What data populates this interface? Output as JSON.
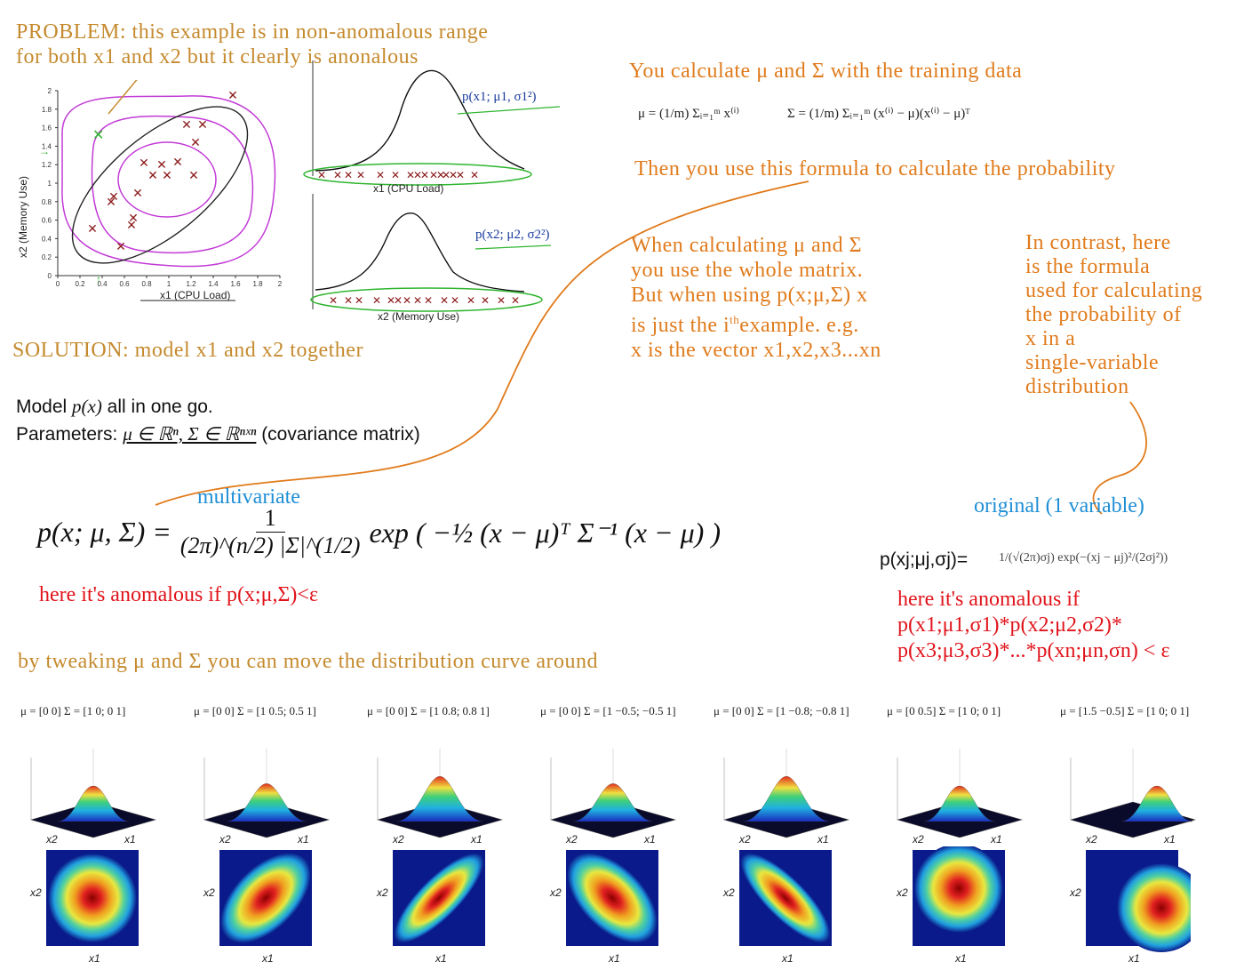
{
  "problem": {
    "line1": "PROBLEM: this example is in non-anomalous range",
    "line2": "for both x1 and x2 but it clearly is anonalous"
  },
  "plots": {
    "scatter_ylabel": "x2 (Memory Use)",
    "scatter_xlabel": "x1 (CPU Load)",
    "scatter_yticks": [
      "2",
      "1.8",
      "1.6",
      "1.4",
      "1.2",
      "1",
      "0.8",
      "0.6",
      "0.4",
      "0.2",
      "0"
    ],
    "scatter_xticks": [
      "0",
      "0.2",
      "0.4",
      "0.6",
      "0.8",
      "1",
      "1.2",
      "1.4",
      "1.6",
      "1.8",
      "2"
    ],
    "curve1_note": "p(x1; μ1, σ1²)",
    "curve1_xlabel": "x1 (CPU Load)",
    "curve2_note": "p(x2; μ2, σ2²)",
    "curve2_xlabel": "x2 (Memory Use)"
  },
  "solution": "SOLUTION: model x1 and x2 together",
  "model": {
    "line1_a": "Model ",
    "line1_math": "p(x)",
    "line1_b": " all in one go.",
    "line2_a": "Parameters: ",
    "line2_math": "μ ∈ ℝⁿ, Σ ∈ ℝⁿˣⁿ",
    "line2_b": " (covariance matrix)"
  },
  "calc": {
    "title": "You calculate μ and Σ with the training data",
    "mu_formula": "μ = (1/m) Σᵢ₌₁ᵐ x⁽ⁱ⁾",
    "sigma_formula": "Σ = (1/m) Σᵢ₌₁ᵐ (x⁽ⁱ⁾ − μ)(x⁽ⁱ⁾ − μ)ᵀ",
    "then": "Then you use this formula to calculate the probability"
  },
  "whole_matrix": {
    "l1": "When calculating μ and Σ",
    "l2": "you use the whole matrix.",
    "l3": "But when using p(x;μ,Σ) x",
    "l4a": "is just the i",
    "l4sup": "th",
    "l4b": "example. e.g.",
    "l5": "x is the vector x1,x2,x3...xn"
  },
  "contrast": {
    "l1": "In contrast, here",
    "l2": "is the formula",
    "l3": "used for calculating",
    "l4": "the probability of",
    "l5": "x in a",
    "l6": "single-variable",
    "l7": "distribution"
  },
  "multivariate": {
    "label": "multivariate",
    "formula_left": "p(x; μ, Σ) =",
    "formula_frac_num": "1",
    "formula_frac_den": "(2π)^(n/2) |Σ|^(1/2)",
    "formula_right": "exp ( −½ (x − μ)ᵀ Σ⁻¹ (x − μ) )",
    "anomalous": "here it's anomalous if p(x;μ,Σ)<ε"
  },
  "original": {
    "label": "original (1 variable)",
    "lhs": "p(xj;μj,σj)=",
    "rhs": "1/(√(2π)σj) exp(−(xj − μj)²/(2σj²))",
    "anom1": "here it's anomalous if",
    "anom2": "p(x1;μ1,σ1)*p(x2;μ2,σ2)*",
    "anom3": "p(x3;μ3,σ3)*...*p(xn;μn,σn) < ε"
  },
  "tweak": "by tweaking μ and Σ you can move the distribution curve around",
  "panels": [
    {
      "mu": "μ = [0 0]",
      "sigma": "Σ = [1 0; 0 1]",
      "orient": 0,
      "sx": 1,
      "sy": 1,
      "cx": 0,
      "cy": 0
    },
    {
      "mu": "μ = [0 0]",
      "sigma": "Σ = [1 0.5; 0.5 1]",
      "orient": -45,
      "sx": 1.25,
      "sy": 0.7,
      "cx": 0,
      "cy": 0
    },
    {
      "mu": "μ = [0 0]",
      "sigma": "Σ = [1 0.8; 0.8 1]",
      "orient": -45,
      "sx": 1.35,
      "sy": 0.45,
      "cx": 0,
      "cy": 0
    },
    {
      "mu": "μ = [0 0]",
      "sigma": "Σ = [1 −0.5; −0.5 1]",
      "orient": 45,
      "sx": 1.25,
      "sy": 0.7,
      "cx": 0,
      "cy": 0
    },
    {
      "mu": "μ = [0 0]",
      "sigma": "Σ = [1 −0.8; −0.8 1]",
      "orient": 45,
      "sx": 1.35,
      "sy": 0.45,
      "cx": 0,
      "cy": 0
    },
    {
      "mu": "μ = [0 0.5]",
      "sigma": "Σ = [1 0; 0 1]",
      "orient": 0,
      "sx": 1,
      "sy": 1,
      "cx": 0,
      "cy": -0.5
    },
    {
      "mu": "μ = [1.5 −0.5]",
      "sigma": "Σ = [1 0; 0 1]",
      "orient": 0,
      "sx": 1,
      "sy": 1,
      "cx": 1.5,
      "cy": 0.5
    }
  ],
  "axis_labels": {
    "x1": "x1",
    "x2": "x2"
  },
  "colors": {
    "orange": "#e07b1c",
    "red": "#e0141b",
    "blue": "#1f8fd6",
    "magenta": "#c23bd6",
    "green": "#2fb52f",
    "darkred": "#8b1a1a"
  }
}
